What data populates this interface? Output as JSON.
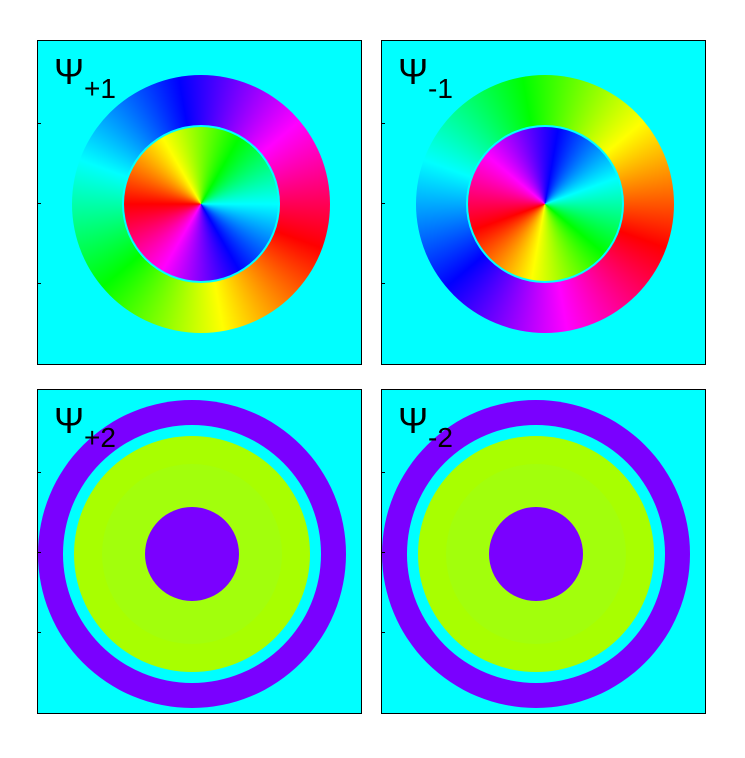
{
  "panels": [
    {
      "symbol": "Ψ",
      "subscript": "+1"
    },
    {
      "symbol": "Ψ",
      "subscript": "-1"
    },
    {
      "symbol": "Ψ",
      "subscript": "+2"
    },
    {
      "symbol": "Ψ",
      "subscript": "-2"
    }
  ]
}
